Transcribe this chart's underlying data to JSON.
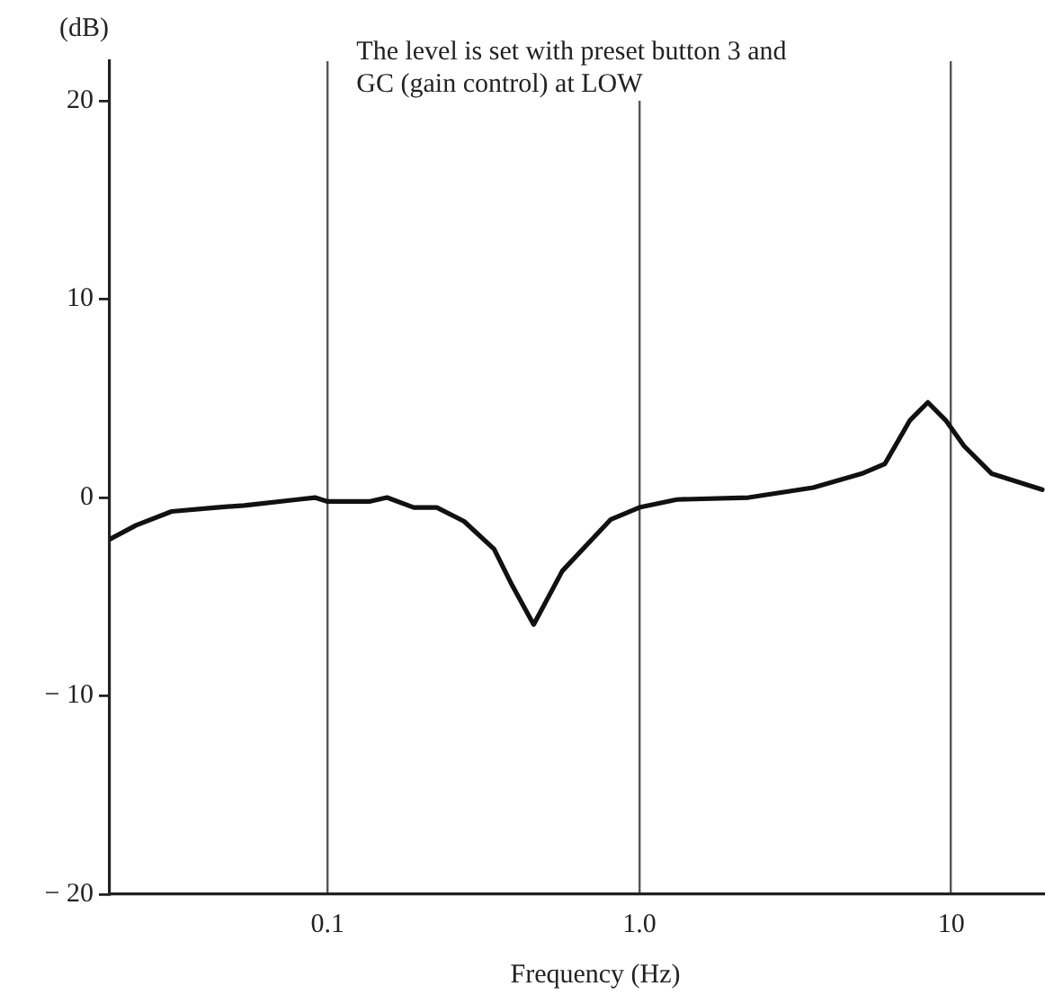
{
  "chart_data": {
    "type": "line",
    "xlabel": "Frequency (Hz)",
    "ylabel": "(dB)",
    "log": "x",
    "annotations": [
      "The level is set with preset button 3 and\nGC (gain control) at LOW"
    ],
    "x": [
      0.02,
      0.0243,
      0.0316,
      0.044,
      0.054,
      0.08,
      0.091,
      0.1,
      0.136,
      0.155,
      0.189,
      0.224,
      0.274,
      0.342,
      0.39,
      0.458,
      0.566,
      0.81,
      1.0,
      1.32,
      2.24,
      3.61,
      5.16,
      6.13,
      7.38,
      8.42,
      9.6,
      11.0,
      13.5,
      16.3,
      19.6
    ],
    "series": [
      {
        "color": "#111111",
        "values": [
          -2.1,
          -1.4,
          -0.7,
          -0.5,
          -0.4,
          -0.1,
          0,
          -0.2,
          -0.2,
          0,
          -0.5,
          -0.5,
          -1.2,
          -2.6,
          -4.4,
          -6.4,
          -3.7,
          -1.1,
          -0.5,
          -0.1,
          0,
          0.5,
          1.2,
          1.7,
          3.9,
          4.8,
          3.9,
          2.6,
          1.2,
          0.8,
          0.4
        ]
      }
    ],
    "xlim": [
      0.02,
      20
    ],
    "xticks": [
      0.1,
      {
        "value": 1,
        "label": "1.0"
      },
      10
    ],
    "ylim": [
      -20,
      22
    ],
    "yticks": [
      -20,
      -10,
      0,
      10,
      20
    ],
    "grid": "x",
    "marker": "none",
    "line_style": "solid",
    "legend": false
  }
}
